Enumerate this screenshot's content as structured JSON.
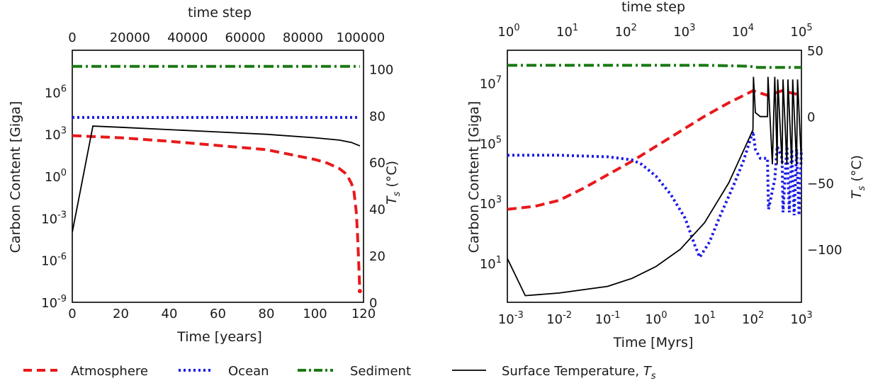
{
  "colors": {
    "atmosphere": "#e8191b",
    "ocean": "#1a1ae6",
    "sediment": "#1a7a12",
    "temperature": "#000000"
  },
  "legend": {
    "atmosphere": "Atmosphere",
    "ocean": "Ocean",
    "sediment": "Sediment",
    "temperature_prefix": "Surface Temperature, ",
    "temperature_symbol": "T",
    "temperature_sub": "s"
  },
  "chart_data": [
    {
      "type": "line",
      "xlabel": "Time [years]",
      "x_top_label": "time step",
      "ylabel": "Carbon Content [Giga]",
      "y2label_symbol": "T",
      "y2label_sub": "s",
      "y2label_unit": " (°C)",
      "xlim": [
        0,
        120
      ],
      "x_top_lim": [
        0,
        100000
      ],
      "ylim_log10": [
        -9,
        9
      ],
      "y_scale": "log",
      "y2lim": [
        0,
        108
      ],
      "x_ticks": [
        "0",
        "20",
        "40",
        "60",
        "80",
        "100",
        "120"
      ],
      "x_top_ticks": [
        "0",
        "20000",
        "40000",
        "60000",
        "80000",
        "100000"
      ],
      "y_ticks": [
        {
          "base": "10",
          "exp": "-9"
        },
        {
          "base": "10",
          "exp": "-6"
        },
        {
          "base": "10",
          "exp": "-3"
        },
        {
          "base": "10",
          "exp": "0"
        },
        {
          "base": "10",
          "exp": "3"
        },
        {
          "base": "10",
          "exp": "6"
        }
      ],
      "y2_ticks": [
        "0",
        "20",
        "40",
        "60",
        "80",
        "100"
      ],
      "series": [
        {
          "key": "sediment",
          "name": "Sediment",
          "axis": "left_log10",
          "x": [
            0,
            118.5
          ],
          "y": [
            7.85,
            7.85
          ]
        },
        {
          "key": "ocean",
          "name": "Ocean",
          "axis": "left_log10",
          "x": [
            0,
            118.5
          ],
          "y": [
            4.2,
            4.2
          ]
        },
        {
          "key": "atmosphere",
          "name": "Atmosphere",
          "axis": "left_log10",
          "x": [
            0,
            20,
            40,
            60,
            80,
            100,
            105,
            110,
            113,
            115,
            116,
            117,
            117.5,
            118,
            118.3,
            118.5
          ],
          "y": [
            2.9,
            2.75,
            2.5,
            2.2,
            1.9,
            1.2,
            0.95,
            0.55,
            0.15,
            -0.5,
            -1,
            -2.5,
            -4,
            -6,
            -7.5,
            -8.2
          ]
        },
        {
          "key": "temperature",
          "name": "Surface Temperature",
          "axis": "right",
          "x": [
            0,
            8.5,
            20,
            40,
            60,
            80,
            100,
            110,
            115,
            118.5
          ],
          "y": [
            30,
            75.5,
            75,
            74,
            73,
            72,
            70.5,
            69.5,
            68.5,
            67
          ]
        }
      ]
    },
    {
      "type": "line",
      "xlabel": "Time [Myrs]",
      "x_top_label": "time step",
      "ylabel": "Carbon Content [Giga]",
      "y2label_symbol": "T",
      "y2label_sub": "s",
      "y2label_unit": " (°C)",
      "x_scale": "log",
      "xlim_log10": [
        -3.07,
        3
      ],
      "x_top_lim_log10": [
        0,
        5
      ],
      "ylim_log10": [
        -0.3,
        8.1
      ],
      "y_scale": "log",
      "y2lim": [
        -140,
        50
      ],
      "x_ticks": [
        {
          "base": "10",
          "exp": "-3"
        },
        {
          "base": "10",
          "exp": "-2"
        },
        {
          "base": "10",
          "exp": "-1"
        },
        {
          "base": "10",
          "exp": "0"
        },
        {
          "base": "10",
          "exp": "1"
        },
        {
          "base": "10",
          "exp": "2"
        },
        {
          "base": "10",
          "exp": "3"
        }
      ],
      "x_top_ticks": [
        {
          "base": "10",
          "exp": "0"
        },
        {
          "base": "10",
          "exp": "1"
        },
        {
          "base": "10",
          "exp": "2"
        },
        {
          "base": "10",
          "exp": "3"
        },
        {
          "base": "10",
          "exp": "4"
        },
        {
          "base": "10",
          "exp": "5"
        }
      ],
      "y_ticks": [
        {
          "base": "10",
          "exp": "1"
        },
        {
          "base": "10",
          "exp": "3"
        },
        {
          "base": "10",
          "exp": "5"
        },
        {
          "base": "10",
          "exp": "7"
        }
      ],
      "y2_ticks": [
        "−100",
        "−50",
        "0",
        "50"
      ],
      "series": [
        {
          "key": "sediment",
          "name": "Sediment",
          "axis": "left_log10",
          "x_log10": true,
          "x": [
            -3.07,
            1,
            1.9,
            2.1,
            3
          ],
          "y": [
            7.6,
            7.6,
            7.57,
            7.53,
            7.53
          ]
        },
        {
          "key": "atmosphere",
          "name": "Atmosphere",
          "axis": "left_log10",
          "x_log10": true,
          "x": [
            -3.07,
            -2.5,
            -2,
            -1.5,
            -1,
            -0.5,
            0,
            0.5,
            1,
            1.5,
            2,
            2.3,
            2.6,
            3
          ],
          "y": [
            2.8,
            2.9,
            3.1,
            3.5,
            3.95,
            4.4,
            4.9,
            5.4,
            5.9,
            6.35,
            6.75,
            6.6,
            6.75,
            6.6
          ]
        },
        {
          "key": "ocean",
          "name": "Ocean",
          "axis": "left_log10",
          "x_log10": true,
          "x": [
            -3.07,
            -2,
            -1,
            -0.5,
            -0.3,
            0,
            0.3,
            0.6,
            0.8,
            0.9,
            1.1,
            1.3,
            1.6,
            1.8,
            2.0,
            2.05,
            2.15,
            2.3,
            2.32,
            2.45,
            2.5,
            2.6,
            2.62,
            2.7,
            2.75,
            2.8,
            2.85,
            2.9,
            2.95,
            3
          ],
          "y": [
            4.6,
            4.6,
            4.55,
            4.45,
            4.3,
            3.9,
            3.3,
            2.5,
            1.6,
            1.2,
            1.7,
            2.5,
            3.6,
            4.4,
            5.4,
            4.8,
            4.5,
            4.5,
            2.8,
            3.8,
            4.9,
            4.5,
            2.7,
            4.9,
            2.7,
            4.8,
            2.6,
            4.8,
            2.6,
            4.8
          ]
        },
        {
          "key": "temperature",
          "name": "Surface Temperature",
          "axis": "right",
          "x_log10": true,
          "x": [
            -3.07,
            -2.7,
            -2,
            -1,
            -0.5,
            0,
            0.5,
            1,
            1.5,
            1.9,
            2.0,
            2.01,
            2.05,
            2.15,
            2.3,
            2.31,
            2.4,
            2.45,
            2.5,
            2.51,
            2.6,
            2.62,
            2.7,
            2.72,
            2.8,
            2.82,
            2.9,
            2.92,
            3
          ],
          "y": [
            -107,
            -135,
            -133,
            -128,
            -122,
            -113,
            -100,
            -80,
            -50,
            -18,
            -10,
            30,
            3,
            0,
            0,
            30,
            -36,
            30,
            -36,
            28,
            -36,
            28,
            -36,
            28,
            -36,
            28,
            -36,
            28,
            -36
          ]
        }
      ]
    }
  ]
}
